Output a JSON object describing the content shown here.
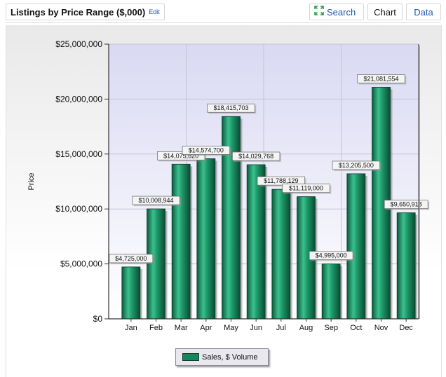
{
  "header": {
    "title": "Listings by Price Range ($,000)",
    "edit_label": "Edit",
    "search_label": "Search",
    "tabs": [
      {
        "label": "Chart"
      },
      {
        "label": "Data"
      }
    ]
  },
  "colors": {
    "bar": "#0e8a5e",
    "link": "#1a56b0",
    "plot_top": "#d9d9f3",
    "plot_bottom": "#ffffff"
  },
  "icons": {
    "search": "expand-arrows-icon"
  },
  "chart_data": {
    "type": "bar",
    "title": "",
    "xlabel": "",
    "ylabel": "Price",
    "ylim": [
      0,
      25000000
    ],
    "yticks": [
      "$0",
      "$5,000,000",
      "$10,000,000",
      "$15,000,000",
      "$20,000,000",
      "$25,000,000"
    ],
    "grid": true,
    "legend_position": "bottom-center",
    "categories": [
      "Jan",
      "Feb",
      "Mar",
      "Apr",
      "May",
      "Jun",
      "Jul",
      "Aug",
      "Sep",
      "Oct",
      "Nov",
      "Dec"
    ],
    "series": [
      {
        "name": "Sales, $ Volume",
        "values": [
          4725000,
          10008944,
          14075820,
          14574700,
          18415703,
          14029768,
          11788129,
          11119000,
          4995000,
          13205500,
          21081554,
          9650918
        ],
        "labels": [
          "$4,725,000",
          "$10,008,944",
          "$14,075,820",
          "$14,574,700",
          "$18,415,703",
          "$14,029,768",
          "$11,788,129",
          "$11,119,000",
          "$4,995,000",
          "$13,205,500",
          "$21,081,554",
          "$9,650,918"
        ]
      }
    ]
  }
}
